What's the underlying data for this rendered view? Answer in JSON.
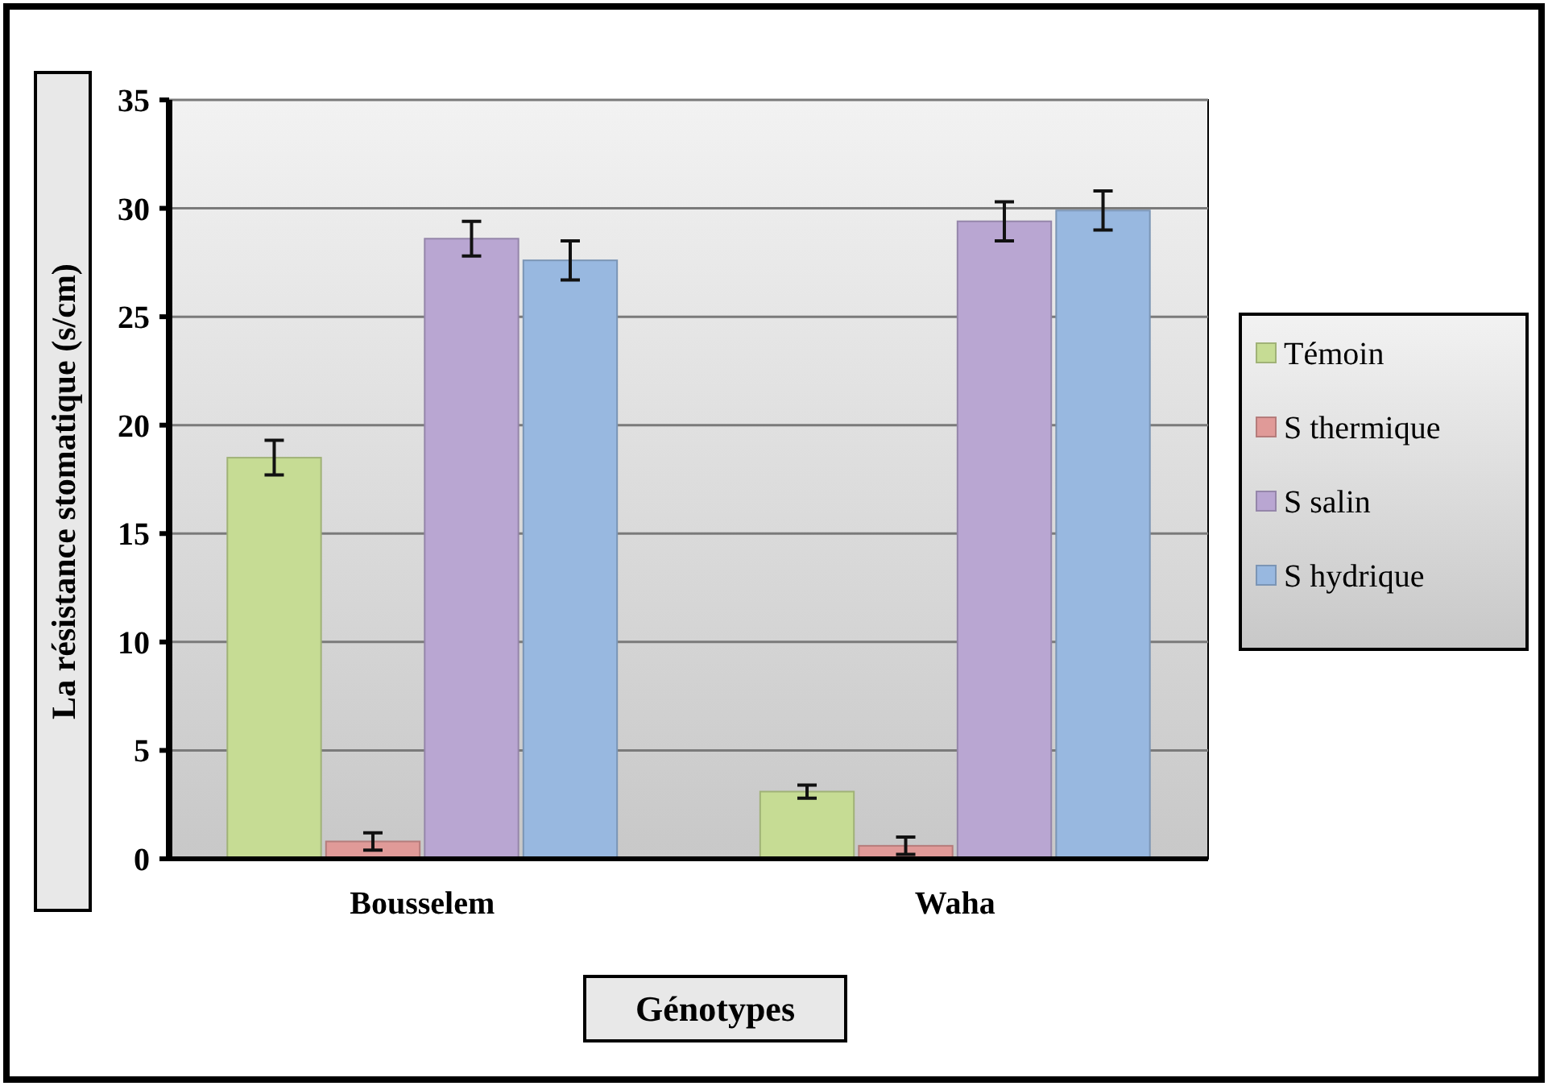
{
  "chart_data": {
    "type": "bar",
    "xlabel": "Génotypes",
    "ylabel": "La résistance stomatique (s/cm)",
    "categories": [
      "Bousselem",
      "Waha"
    ],
    "series": [
      {
        "name": "Témoin",
        "color": "#c6dc94",
        "values": [
          18.5,
          3.1
        ],
        "errors": [
          0.8,
          0.3
        ]
      },
      {
        "name": "S thermique",
        "color": "#e09a98",
        "values": [
          0.8,
          0.6
        ],
        "errors": [
          0.4,
          0.4
        ]
      },
      {
        "name": "S salin",
        "color": "#b9a6d2",
        "values": [
          28.6,
          29.4
        ],
        "errors": [
          0.8,
          0.9
        ]
      },
      {
        "name": "S hydrique",
        "color": "#98b8e0",
        "values": [
          27.6,
          29.9
        ],
        "errors": [
          0.9,
          0.9
        ]
      }
    ],
    "ylim": [
      0,
      35
    ],
    "yticks": [
      0,
      5,
      10,
      15,
      20,
      25,
      30,
      35
    ],
    "grid": "y",
    "legend": "right"
  }
}
